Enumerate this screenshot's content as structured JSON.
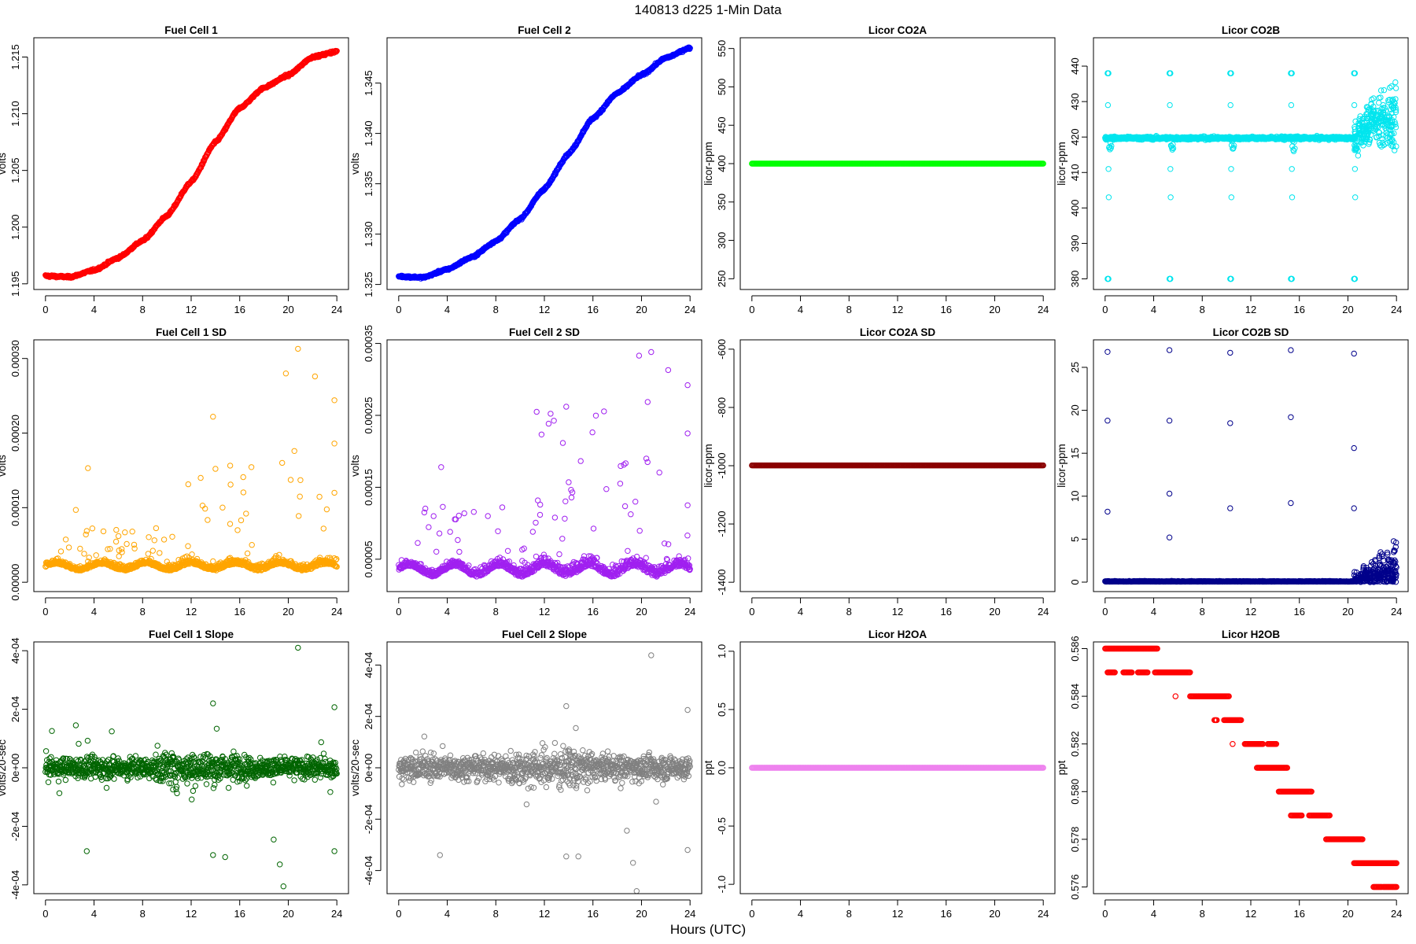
{
  "figure": {
    "title": "140813   d225   1-Min Data",
    "xlabel": "Hours (UTC)"
  },
  "chart_data": [
    {
      "id": "fc1",
      "type": "scatter",
      "title": "Fuel Cell 1",
      "ylabel": "volts",
      "color": "#ff0000",
      "xlim": [
        -0.96,
        24.96
      ],
      "ylim": [
        1.1945,
        1.2167
      ],
      "x_ticks": [
        0,
        4,
        8,
        12,
        16,
        20,
        24
      ],
      "y_ticks": [
        1.195,
        1.2,
        1.205,
        1.21,
        1.215
      ],
      "y_tick_labels": [
        "1.195",
        "1.200",
        "1.205",
        "1.210",
        "1.215"
      ],
      "series": [
        {
          "pattern": "sigmoid",
          "x": [
            0,
            24
          ],
          "y_start": 1.1955,
          "y_end": 1.2155,
          "points": [
            [
              0,
              1.1957
            ],
            [
              2,
              1.1956
            ],
            [
              4,
              1.1962
            ],
            [
              6,
              1.1973
            ],
            [
              8,
              1.1988
            ],
            [
              10,
              1.201
            ],
            [
              12,
              1.204
            ],
            [
              14,
              1.2075
            ],
            [
              16,
              1.2105
            ],
            [
              18,
              1.2123
            ],
            [
              20,
              1.2134
            ],
            [
              22,
              1.215
            ],
            [
              24,
              1.2155
            ]
          ]
        }
      ]
    },
    {
      "id": "fc2",
      "type": "scatter",
      "title": "Fuel Cell 2",
      "ylabel": "volts",
      "color": "#0000ff",
      "xlim": [
        -0.96,
        24.96
      ],
      "ylim": [
        1.3245,
        1.3495
      ],
      "x_ticks": [
        0,
        4,
        8,
        12,
        16,
        20,
        24
      ],
      "y_ticks": [
        1.325,
        1.33,
        1.335,
        1.34,
        1.345
      ],
      "y_tick_labels": [
        "1.325",
        "1.330",
        "1.335",
        "1.340",
        "1.345"
      ],
      "series": [
        {
          "pattern": "sigmoid",
          "points": [
            [
              0,
              1.3258
            ],
            [
              2,
              1.3257
            ],
            [
              4,
              1.3265
            ],
            [
              6,
              1.3277
            ],
            [
              8,
              1.3293
            ],
            [
              10,
              1.3315
            ],
            [
              12,
              1.3345
            ],
            [
              14,
              1.338
            ],
            [
              16,
              1.3415
            ],
            [
              18,
              1.344
            ],
            [
              20,
              1.3458
            ],
            [
              22,
              1.3475
            ],
            [
              24,
              1.3485
            ]
          ]
        }
      ]
    },
    {
      "id": "co2a",
      "type": "scatter",
      "title": "Licor CO2A",
      "ylabel": "licor-ppm",
      "color": "#00ff00",
      "xlim": [
        -0.96,
        24.96
      ],
      "ylim": [
        236,
        564
      ],
      "x_ticks": [
        0,
        4,
        8,
        12,
        16,
        20,
        24
      ],
      "y_ticks": [
        250,
        300,
        350,
        400,
        450,
        500,
        550
      ],
      "y_tick_labels": [
        "250",
        "300",
        "350",
        "400",
        "450",
        "500",
        "550"
      ],
      "series": [
        {
          "pattern": "constant",
          "value": 400
        }
      ]
    },
    {
      "id": "co2b",
      "type": "scatter",
      "title": "Licor CO2B",
      "ylabel": "licor-ppm",
      "color": "#00e5ee",
      "xlim": [
        -0.96,
        24.96
      ],
      "ylim": [
        377,
        448
      ],
      "x_ticks": [
        0,
        4,
        8,
        12,
        16,
        20,
        24
      ],
      "y_ticks": [
        380,
        390,
        400,
        410,
        420,
        430,
        440
      ],
      "y_tick_labels": [
        "380",
        "390",
        "400",
        "410",
        "420",
        "430",
        "440"
      ],
      "series": [
        {
          "pattern": "baseline_with_spikes",
          "baseline": 419.7,
          "spike_hours": [
            0.2,
            5.3,
            10.3,
            15.3,
            20.5
          ],
          "spike_values": [
            380,
            438,
            428,
            411,
            403
          ],
          "noisy_after": 20.5,
          "noisy_mean": 425,
          "noisy_spread": 8
        }
      ]
    },
    {
      "id": "fc1sd",
      "type": "scatter",
      "title": "Fuel Cell 1 SD",
      "ylabel": "volts",
      "color": "#ffa500",
      "xlim": [
        -0.96,
        24.96
      ],
      "ylim": [
        -1.25e-05,
        0.000325
      ],
      "x_ticks": [
        0,
        4,
        8,
        12,
        16,
        20,
        24
      ],
      "y_ticks": [
        0,
        0.0001,
        0.0002,
        0.0003
      ],
      "y_tick_labels": [
        "0.00000",
        "0.00010",
        "0.00020",
        "0.00030"
      ],
      "series": [
        {
          "pattern": "noisy_baseline",
          "baseline": 2e-05,
          "outliers": [
            [
              3.5,
              0.000153
            ],
            [
              2.5,
              9.7e-05
            ],
            [
              13.8,
              0.000222
            ],
            [
              19.8,
              0.00028
            ],
            [
              20.8,
              0.000313
            ],
            [
              22.2,
              0.000276
            ],
            [
              23.8,
              0.000244
            ],
            [
              23.8,
              0.000186
            ],
            [
              23.8,
              0.00012
            ],
            [
              14,
              0.000152
            ],
            [
              21,
              0.000137
            ],
            [
              20.5,
              0.000176
            ],
            [
              19.5,
              0.00016
            ]
          ]
        }
      ]
    },
    {
      "id": "fc2sd",
      "type": "scatter",
      "title": "Fuel Cell 2 SD",
      "ylabel": "volts",
      "color": "#a020f0",
      "xlim": [
        -0.96,
        24.96
      ],
      "ylim": [
        5e-06,
        0.000355
      ],
      "x_ticks": [
        0,
        4,
        8,
        12,
        16,
        20,
        24
      ],
      "y_ticks": [
        5e-05,
        0.00015,
        0.00025,
        0.00035
      ],
      "y_tick_labels": [
        "0.00005",
        "0.00015",
        "0.00025",
        "0.00035"
      ],
      "series": [
        {
          "pattern": "noisy_baseline",
          "baseline": 3.3e-05,
          "outliers": [
            [
              3.5,
              0.000178
            ],
            [
              13.8,
              0.000262
            ],
            [
              19.8,
              0.000333
            ],
            [
              20.8,
              0.000338
            ],
            [
              22.2,
              0.000313
            ],
            [
              23.8,
              0.000292
            ],
            [
              23.8,
              0.000225
            ],
            [
              23.8,
              0.000125
            ],
            [
              20.4,
              0.00019
            ],
            [
              14,
              0.000157
            ],
            [
              20.5,
              0.000185
            ],
            [
              19.5,
              0.00013
            ]
          ]
        }
      ]
    },
    {
      "id": "co2asd",
      "type": "scatter",
      "title": "Licor CO2A SD",
      "ylabel": "licor-ppm",
      "color": "#8b0000",
      "xlim": [
        -0.96,
        24.96
      ],
      "ylim": [
        -1432,
        -568
      ],
      "x_ticks": [
        0,
        4,
        8,
        12,
        16,
        20,
        24
      ],
      "y_ticks": [
        -1400,
        -1200,
        -1000,
        -800,
        -600
      ],
      "y_tick_labels": [
        "-1400",
        "-1200",
        "-1000",
        "-800",
        "-600"
      ],
      "series": [
        {
          "pattern": "constant",
          "value": -999
        }
      ]
    },
    {
      "id": "co2bsd",
      "type": "scatter",
      "title": "Licor CO2B SD",
      "ylabel": "licor-ppm",
      "color": "#00008b",
      "xlim": [
        -0.96,
        24.96
      ],
      "ylim": [
        -1.1,
        28.2
      ],
      "x_ticks": [
        0,
        4,
        8,
        12,
        16,
        20,
        24
      ],
      "y_ticks": [
        0,
        5,
        10,
        15,
        20,
        25
      ],
      "y_tick_labels": [
        "0",
        "5",
        "10",
        "15",
        "20",
        "25"
      ],
      "series": [
        {
          "pattern": "baseline_with_spikes",
          "baseline": 0.05,
          "spike_points": [
            [
              0.2,
              26.8
            ],
            [
              5.3,
              27
            ],
            [
              10.3,
              26.7
            ],
            [
              15.3,
              27
            ],
            [
              20.5,
              26.6
            ],
            [
              0.2,
              18.8
            ],
            [
              5.3,
              18.8
            ],
            [
              10.3,
              18.5
            ],
            [
              15.3,
              19.2
            ],
            [
              20.5,
              15.6
            ],
            [
              0.2,
              8.2
            ],
            [
              5.3,
              10.3
            ],
            [
              10.3,
              8.6
            ],
            [
              15.3,
              9.2
            ],
            [
              20.5,
              8.6
            ],
            [
              5.3,
              5.2
            ]
          ],
          "noisy_after": 20.5,
          "noisy_mean": 1.8,
          "noisy_spread": 2.5
        }
      ]
    },
    {
      "id": "fc1slope",
      "type": "scatter",
      "title": "Fuel Cell 1 Slope",
      "ylabel": "volts/20-sec",
      "color": "#006400",
      "xlim": [
        -0.96,
        24.96
      ],
      "ylim": [
        -0.00043,
        0.00043
      ],
      "x_ticks": [
        0,
        4,
        8,
        12,
        16,
        20,
        24
      ],
      "y_ticks": [
        -0.0004,
        -0.0002,
        0,
        0.0002,
        0.0004
      ],
      "y_tick_labels": [
        "-4e-04",
        "-2e-04",
        "0e+00",
        "2e-04",
        "4e-04"
      ],
      "series": [
        {
          "pattern": "noise_around_zero",
          "spread": 3e-05,
          "outliers": [
            [
              20.8,
              0.00041
            ],
            [
              13.8,
              0.00022
            ],
            [
              2.5,
              0.000145
            ],
            [
              3.4,
              -0.000285
            ],
            [
              13.8,
              -0.000298
            ],
            [
              19.6,
              -0.000405
            ],
            [
              23.8,
              0.000207
            ],
            [
              23.8,
              -0.000285
            ],
            [
              19.3,
              -0.00033
            ],
            [
              18.8,
              -0.000245
            ],
            [
              14.8,
              -0.000305
            ]
          ]
        }
      ]
    },
    {
      "id": "fc2slope",
      "type": "scatter",
      "title": "Fuel Cell 2 Slope",
      "ylabel": "volts/20-sec",
      "color": "#808080",
      "xlim": [
        -0.96,
        24.96
      ],
      "ylim": [
        -0.00049,
        0.00049
      ],
      "x_ticks": [
        0,
        4,
        8,
        12,
        16,
        20,
        24
      ],
      "y_ticks": [
        -0.0004,
        -0.0002,
        0,
        0.0002,
        0.0004
      ],
      "y_tick_labels": [
        "-4e-04",
        "-2e-04",
        "0e+00",
        "2e-04",
        "4e-04"
      ],
      "series": [
        {
          "pattern": "noise_around_zero",
          "spread": 4e-05,
          "outliers": [
            [
              20.8,
              0.000438
            ],
            [
              13.8,
              0.00024
            ],
            [
              3.4,
              -0.00034
            ],
            [
              13.8,
              -0.000345
            ],
            [
              14.8,
              -0.000345
            ],
            [
              19.6,
              -0.00048
            ],
            [
              23.8,
              0.000225
            ],
            [
              23.8,
              -0.00032
            ],
            [
              19.3,
              -0.00037
            ],
            [
              18.8,
              -0.000245
            ]
          ]
        }
      ]
    },
    {
      "id": "h2oa",
      "type": "scatter",
      "title": "Licor H2OA",
      "ylabel": "ppt",
      "color": "#ee82ee",
      "xlim": [
        -0.96,
        24.96
      ],
      "ylim": [
        -1.08,
        1.08
      ],
      "x_ticks": [
        0,
        4,
        8,
        12,
        16,
        20,
        24
      ],
      "y_ticks": [
        -1,
        -0.5,
        0,
        0.5,
        1
      ],
      "y_tick_labels": [
        "-1.0",
        "-0.5",
        "0.0",
        "0.5",
        "1.0"
      ],
      "series": [
        {
          "pattern": "constant",
          "value": 0
        }
      ]
    },
    {
      "id": "h2ob",
      "type": "scatter",
      "title": "Licor H2OB",
      "ylabel": "ppt",
      "color": "#ff0000",
      "xlim": [
        -0.96,
        24.96
      ],
      "ylim": [
        0.57572,
        0.58628
      ],
      "x_ticks": [
        0,
        4,
        8,
        12,
        16,
        20,
        24
      ],
      "y_ticks": [
        0.576,
        0.578,
        0.58,
        0.582,
        0.584,
        0.586
      ],
      "y_tick_labels": [
        "0.576",
        "0.578",
        "0.580",
        "0.582",
        "0.584",
        "0.586"
      ],
      "series": [
        {
          "pattern": "steps",
          "steps": [
            [
              0,
              4.3,
              0.586
            ],
            [
              0.2,
              0.8,
              0.585
            ],
            [
              1.5,
              2.2,
              0.585
            ],
            [
              2.7,
              3.5,
              0.585
            ],
            [
              4.1,
              7,
              0.585
            ],
            [
              5.8,
              5.8,
              0.584
            ],
            [
              7,
              10.2,
              0.584
            ],
            [
              9,
              9.2,
              0.583
            ],
            [
              9.8,
              11.2,
              0.583
            ],
            [
              10.5,
              10.5,
              0.582
            ],
            [
              11.5,
              13,
              0.582
            ],
            [
              13.4,
              14.1,
              0.582
            ],
            [
              12.5,
              15,
              0.581
            ],
            [
              14.3,
              17,
              0.58
            ],
            [
              15.3,
              16.2,
              0.579
            ],
            [
              16.8,
              18.5,
              0.579
            ],
            [
              18.2,
              21.2,
              0.578
            ],
            [
              20.5,
              24,
              0.577
            ],
            [
              22.1,
              22.8,
              0.576
            ],
            [
              22.9,
              24,
              0.576
            ]
          ]
        }
      ]
    }
  ]
}
